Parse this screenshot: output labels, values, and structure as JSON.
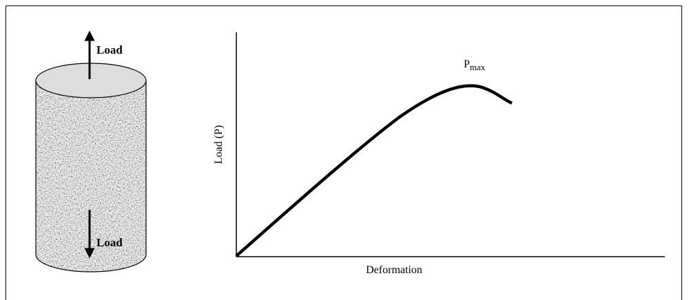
{
  "specimen": {
    "top_label": "Load",
    "bottom_label": "Load"
  },
  "graph": {
    "y_label": "Load (P)",
    "x_label": "Deformation",
    "peak_label": "P",
    "peak_subscript": "max"
  }
}
